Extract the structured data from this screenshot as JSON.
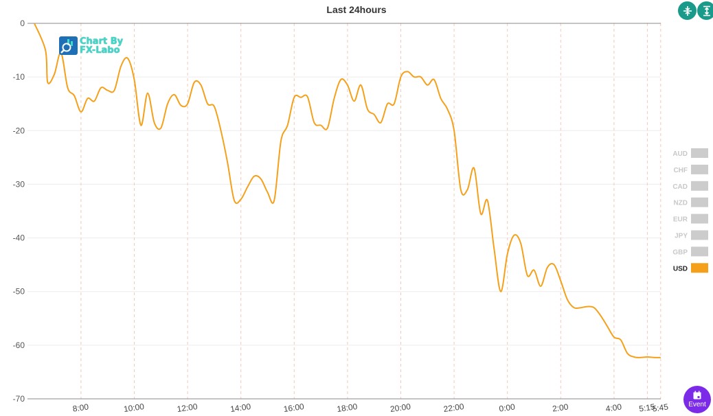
{
  "chart_data": {
    "type": "line",
    "title": "Last 24hours",
    "ylim": [
      -70,
      0
    ],
    "yticks": [
      "0",
      "-10",
      "-20",
      "-30",
      "-40",
      "-50",
      "-60",
      "-70"
    ],
    "xticks": [
      "8:00",
      "10:00",
      "12:00",
      "14:00",
      "16:00",
      "18:00",
      "20:00",
      "22:00",
      "0:00",
      "2:00",
      "4:00",
      "5:15",
      "5:45"
    ],
    "legend_position": "right",
    "legend": [
      "AUD",
      "CHF",
      "CAD",
      "NZD",
      "EUR",
      "JPY",
      "GBP",
      "USD"
    ],
    "active_series": "USD",
    "series": [
      {
        "name": "USD",
        "color": "#f5a01a",
        "x": [
          "6:15",
          "6:40",
          "6:45",
          "7:00",
          "7:15",
          "7:30",
          "7:45",
          "8:00",
          "8:15",
          "8:30",
          "8:45",
          "9:00",
          "9:15",
          "9:30",
          "9:45",
          "10:00",
          "10:15",
          "10:30",
          "10:45",
          "11:00",
          "11:15",
          "11:30",
          "11:45",
          "12:00",
          "12:15",
          "12:30",
          "12:45",
          "13:00",
          "13:15",
          "13:30",
          "13:45",
          "14:00",
          "14:15",
          "14:30",
          "14:45",
          "15:00",
          "15:15",
          "15:30",
          "15:45",
          "16:00",
          "16:15",
          "16:30",
          "16:45",
          "17:00",
          "17:15",
          "17:30",
          "17:45",
          "18:00",
          "18:15",
          "18:30",
          "18:45",
          "19:00",
          "19:15",
          "19:30",
          "19:45",
          "20:00",
          "20:15",
          "20:30",
          "20:45",
          "21:00",
          "21:15",
          "21:30",
          "21:45",
          "22:00",
          "22:15",
          "22:30",
          "22:45",
          "23:00",
          "23:15",
          "23:30",
          "23:45",
          "0:00",
          "0:15",
          "0:30",
          "0:45",
          "1:00",
          "1:15",
          "1:30",
          "1:45",
          "2:00",
          "2:15",
          "2:30",
          "2:45",
          "3:00",
          "3:15",
          "3:30",
          "3:45",
          "4:00",
          "4:15",
          "4:30",
          "4:45",
          "5:00",
          "5:15",
          "5:30",
          "5:45"
        ],
        "values": [
          0,
          -5,
          -11,
          -9.5,
          -5.5,
          -12,
          -13.5,
          -16.5,
          -14,
          -14.5,
          -12,
          -12.5,
          -12.5,
          -8,
          -6.5,
          -10.5,
          -19,
          -13,
          -18.5,
          -19.5,
          -15,
          -13.3,
          -15.3,
          -15,
          -11,
          -11.5,
          -15,
          -15.5,
          -20,
          -26,
          -33,
          -32.8,
          -30.5,
          -28.5,
          -29,
          -31.5,
          -33,
          -22,
          -19,
          -13.8,
          -13.8,
          -13.7,
          -18.5,
          -19,
          -19.5,
          -14,
          -10.5,
          -11.5,
          -14.5,
          -11.5,
          -16,
          -17,
          -18.5,
          -15,
          -15,
          -10,
          -9,
          -10,
          -10,
          -11.5,
          -10.5,
          -14,
          -16,
          -20,
          -31,
          -31,
          -27,
          -35.5,
          -33,
          -42,
          -50,
          -43,
          -39.5,
          -41,
          -47,
          -46,
          -49,
          -45.5,
          -45,
          -48,
          -51.5,
          -53,
          -53,
          -52.8,
          -53,
          -54.5,
          -56.5,
          -58.5,
          -59,
          -61.5,
          -62.2,
          -62.3,
          -62.2,
          -62.3,
          -62.3
        ]
      }
    ]
  },
  "logo": {
    "line1": "Chart By",
    "line2": "FX-Labo"
  },
  "buttons": {
    "event_label": "Event"
  },
  "icons": {
    "compress": "compress-vertical-icon",
    "expand": "expand-vertical-icon",
    "event": "calendar-icon"
  }
}
